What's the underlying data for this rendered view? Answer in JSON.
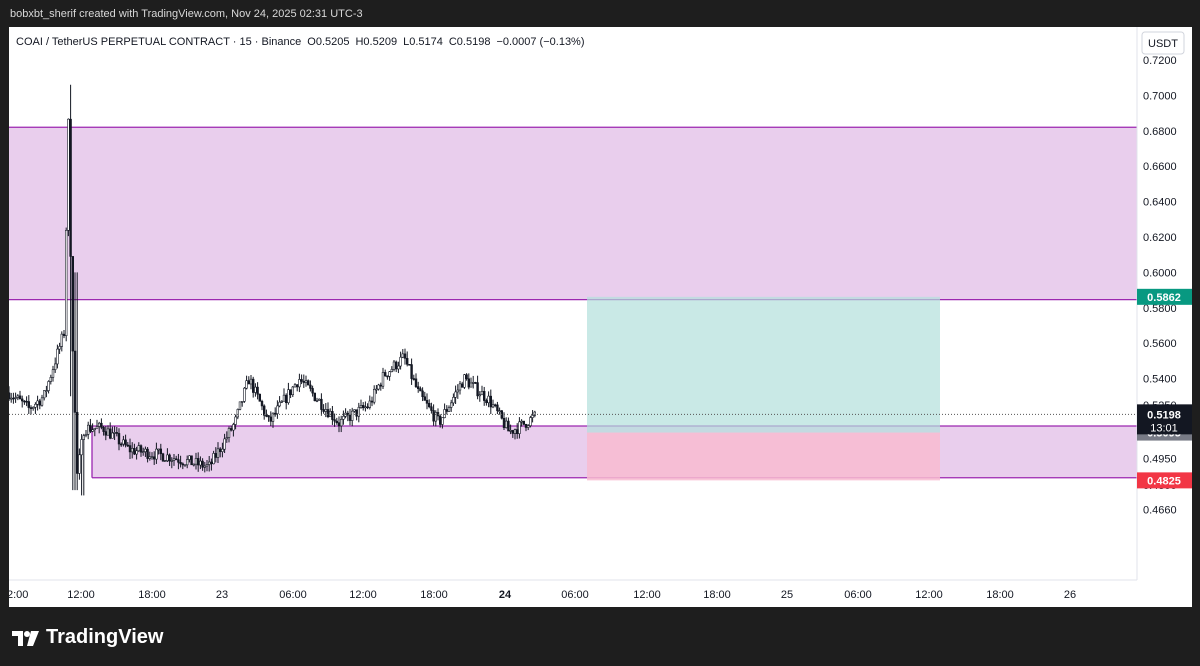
{
  "header": {
    "attribution": "bobxbt_sherif created with TradingView.com, Nov 24, 2025 02:31 UTC-3"
  },
  "footer": {
    "logo_text": "TradingView",
    "logo_icon": "tradingview-logo-icon"
  },
  "chart_data": {
    "type": "candlestick",
    "symbol_line": "COAI / TetherUS PERPETUAL CONTRACT · 15 · Binance",
    "ohlc": {
      "open": "O0.5205",
      "high": "H0.5209",
      "low": "L0.5174",
      "close": "C0.5198",
      "change": "−0.0007 (−0.13%)"
    },
    "currency": "USDT",
    "y_ticks": [
      "0.7200",
      "0.7000",
      "0.6800",
      "0.6600",
      "0.6400",
      "0.6200",
      "0.6000",
      "0.5800",
      "0.5600",
      "0.5400",
      "0.5250",
      "0.4950",
      "0.4800",
      "0.4660"
    ],
    "x_ticks": [
      "2:00",
      "12:00",
      "18:00",
      "23",
      "06:00",
      "12:00",
      "18:00",
      "24",
      "06:00",
      "12:00",
      "18:00",
      "25",
      "06:00",
      "12:00",
      "18:00",
      "26"
    ],
    "ylim": [
      0.456,
      0.728
    ],
    "price_tags": {
      "current": {
        "value": "0.5198",
        "countdown": "13:01",
        "color": "#131722"
      },
      "target": {
        "value": "0.5862",
        "color": "#089981"
      },
      "entry": {
        "value": "0.5095",
        "color": "#787b86"
      },
      "stop": {
        "value": "0.4825",
        "color": "#f23645"
      }
    },
    "zones": [
      {
        "name": "upper-supply-zone",
        "from": 0.5846,
        "to": 0.682,
        "color": "#e1bee7"
      },
      {
        "name": "lower-demand-zone",
        "from": 0.484,
        "to": 0.5132,
        "color": "#e1bee7"
      }
    ],
    "position": {
      "entry": 0.5095,
      "target": 0.5862,
      "stop": 0.4825
    },
    "colors": {
      "zone_border": "#9c27b0",
      "profit": "#b2dfdb",
      "loss": "#f8bbd0",
      "candle": "#131722"
    }
  }
}
